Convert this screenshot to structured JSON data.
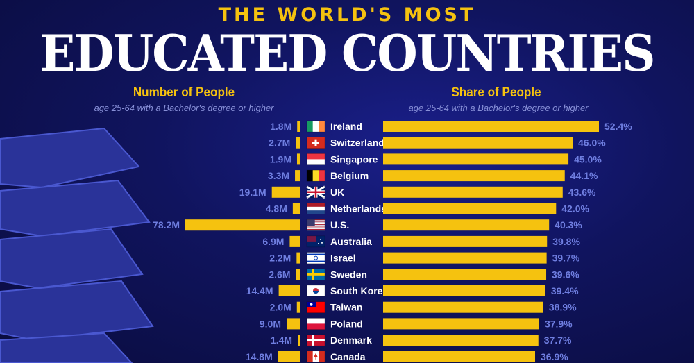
{
  "title_line1": "THE WORLD'S MOST",
  "title_line2": "EDUCATED COUNTRIES",
  "colors": {
    "bar": "#f5c20f",
    "label": "#6f7ee0",
    "background": "#10145e"
  },
  "chart_data": [
    {
      "type": "bar",
      "orientation": "horizontal",
      "title": "Number of People",
      "subtitle": "age 25-64 with a Bachelor's degree or higher",
      "unit": "M",
      "categories": [
        "Ireland",
        "Switzerland",
        "Singapore",
        "Belgium",
        "UK",
        "Netherlands",
        "U.S.",
        "Australia",
        "Israel",
        "Sweden",
        "South Korea",
        "Taiwan",
        "Poland",
        "Denmark",
        "Canada"
      ],
      "values": [
        1.8,
        2.7,
        1.9,
        3.3,
        19.1,
        4.8,
        78.2,
        6.9,
        2.2,
        2.6,
        14.4,
        2.0,
        9.0,
        1.4,
        14.8
      ],
      "labels": [
        "1.8M",
        "2.7M",
        "1.9M",
        "3.3M",
        "19.1M",
        "4.8M",
        "78.2M",
        "6.9M",
        "2.2M",
        "2.6M",
        "14.4M",
        "2.0M",
        "9.0M",
        "1.4M",
        "14.8M"
      ]
    },
    {
      "type": "bar",
      "orientation": "horizontal",
      "title": "Share of People",
      "subtitle": "age 25-64 with a Bachelor's degree or higher",
      "unit": "%",
      "categories": [
        "Ireland",
        "Switzerland",
        "Singapore",
        "Belgium",
        "UK",
        "Netherlands",
        "U.S.",
        "Australia",
        "Israel",
        "Sweden",
        "South Korea",
        "Taiwan",
        "Poland",
        "Denmark",
        "Canada"
      ],
      "values": [
        52.4,
        46.0,
        45.0,
        44.1,
        43.6,
        42.0,
        40.3,
        39.8,
        39.7,
        39.6,
        39.4,
        38.9,
        37.9,
        37.7,
        36.9
      ],
      "labels": [
        "52.4%",
        "46.0%",
        "45.0%",
        "44.1%",
        "43.6%",
        "42.0%",
        "40.3%",
        "39.8%",
        "39.7%",
        "39.6%",
        "39.4%",
        "38.9%",
        "37.9%",
        "37.7%",
        "36.9%"
      ]
    }
  ]
}
